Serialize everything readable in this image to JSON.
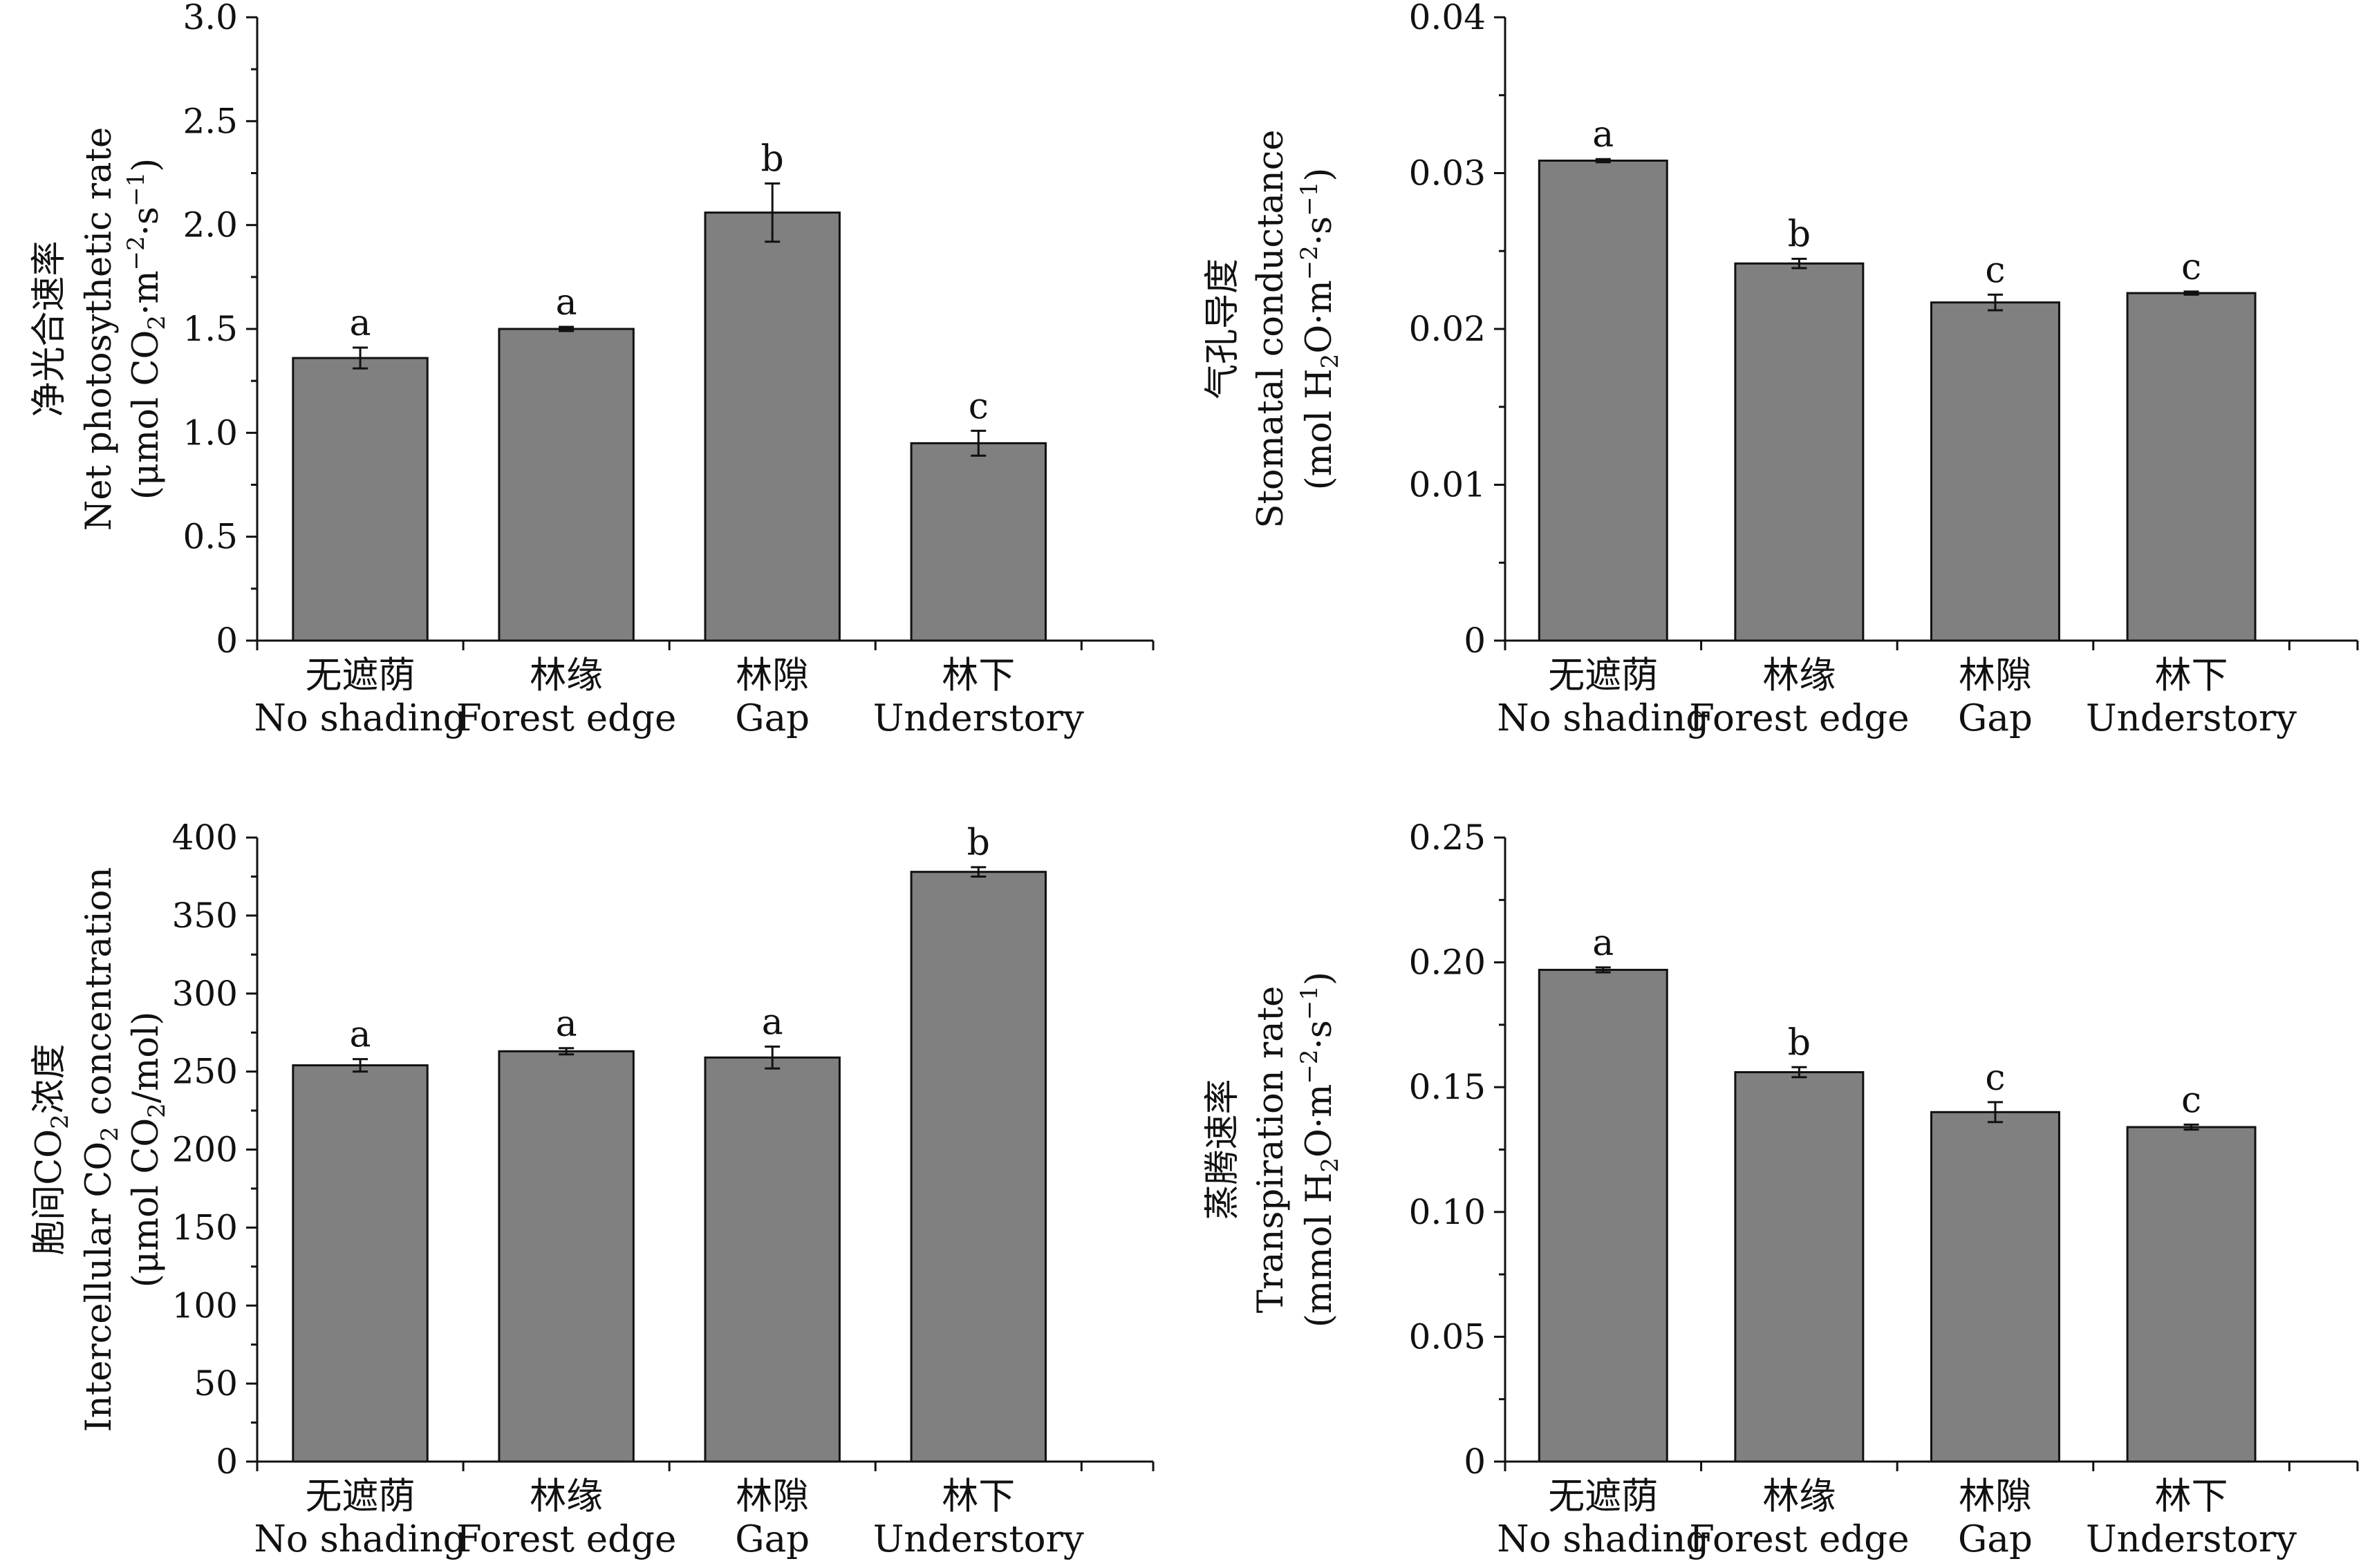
{
  "chart_data": [
    {
      "type": "bar",
      "categories": [
        [
          "无遮荫",
          "No shading"
        ],
        [
          "林缘",
          "Forest edge"
        ],
        [
          "林隙",
          "Gap"
        ],
        [
          "林下",
          "Understory"
        ]
      ],
      "values": [
        1.36,
        1.5,
        2.06,
        0.95
      ],
      "errors": [
        0.05,
        0.01,
        0.14,
        0.06
      ],
      "letters": [
        "a",
        "a",
        "b",
        "c"
      ],
      "ylim": [
        0,
        3.0
      ],
      "yticks": [
        "0",
        "0.5",
        "1.0",
        "1.5",
        "2.0",
        "2.5",
        "3.0"
      ],
      "ylabel": [
        [
          {
            "t": "净光合速率"
          }
        ],
        [
          {
            "t": "Net photosythetic rate"
          }
        ],
        [
          {
            "t": "(μmol CO"
          },
          {
            "t": "2",
            "s": "sub"
          },
          {
            "t": "·m"
          },
          {
            "t": "−2",
            "s": "sup"
          },
          {
            "t": "·s"
          },
          {
            "t": "−1",
            "s": "sup"
          },
          {
            "t": ")"
          }
        ]
      ]
    },
    {
      "type": "bar",
      "categories": [
        [
          "无遮荫",
          "No shading"
        ],
        [
          "林缘",
          "Forest edge"
        ],
        [
          "林隙",
          "Gap"
        ],
        [
          "林下",
          "Understory"
        ]
      ],
      "values": [
        0.0308,
        0.0242,
        0.0217,
        0.0223
      ],
      "errors": [
        0.0001,
        0.0003,
        0.0005,
        0.0001
      ],
      "letters": [
        "a",
        "b",
        "c",
        "c"
      ],
      "ylim": [
        0,
        0.04
      ],
      "yticks": [
        "0",
        "0.01",
        "0.02",
        "0.03",
        "0.04"
      ],
      "ylabel": [
        [
          {
            "t": "气孔导度"
          }
        ],
        [
          {
            "t": "Stomatal conductance"
          }
        ],
        [
          {
            "t": "(mol H"
          },
          {
            "t": "2",
            "s": "sub"
          },
          {
            "t": "O·m"
          },
          {
            "t": "−2",
            "s": "sup"
          },
          {
            "t": "·s"
          },
          {
            "t": "−1",
            "s": "sup"
          },
          {
            "t": ")"
          }
        ]
      ]
    },
    {
      "type": "bar",
      "categories": [
        [
          "无遮荫",
          "No shading"
        ],
        [
          "林缘",
          "Forest edge"
        ],
        [
          "林隙",
          "Gap"
        ],
        [
          "林下",
          "Understory"
        ]
      ],
      "values": [
        254,
        263,
        259,
        378
      ],
      "errors": [
        4,
        2,
        7,
        3
      ],
      "letters": [
        "a",
        "a",
        "a",
        "b"
      ],
      "ylim": [
        0,
        400
      ],
      "yticks": [
        "0",
        "50",
        "100",
        "150",
        "200",
        "250",
        "300",
        "350",
        "400"
      ],
      "ylabel": [
        [
          {
            "t": "胞间CO"
          },
          {
            "t": "2",
            "s": "sub"
          },
          {
            "t": "浓度"
          }
        ],
        [
          {
            "t": "Intercellular CO"
          },
          {
            "t": "2",
            "s": "sub"
          },
          {
            "t": " concentration"
          }
        ],
        [
          {
            "t": "(μmol CO"
          },
          {
            "t": "2",
            "s": "sub"
          },
          {
            "t": "/mol)"
          }
        ]
      ]
    },
    {
      "type": "bar",
      "categories": [
        [
          "无遮荫",
          "No shading"
        ],
        [
          "林缘",
          "Forest edge"
        ],
        [
          "林隙",
          "Gap"
        ],
        [
          "林下",
          "Understory"
        ]
      ],
      "values": [
        0.197,
        0.156,
        0.14,
        0.134
      ],
      "errors": [
        0.001,
        0.002,
        0.004,
        0.001
      ],
      "letters": [
        "a",
        "b",
        "c",
        "c"
      ],
      "ylim": [
        0,
        0.25
      ],
      "yticks": [
        "0",
        "0.05",
        "0.10",
        "0.15",
        "0.20",
        "0.25"
      ],
      "ylabel": [
        [
          {
            "t": "蒸腾速率"
          }
        ],
        [
          {
            "t": "Transpiration rate"
          }
        ],
        [
          {
            "t": "(mmol H"
          },
          {
            "t": "2",
            "s": "sub"
          },
          {
            "t": "O·m"
          },
          {
            "t": "−2",
            "s": "sup"
          },
          {
            "t": "·s"
          },
          {
            "t": "−1",
            "s": "sup"
          },
          {
            "t": ")"
          }
        ]
      ]
    }
  ]
}
